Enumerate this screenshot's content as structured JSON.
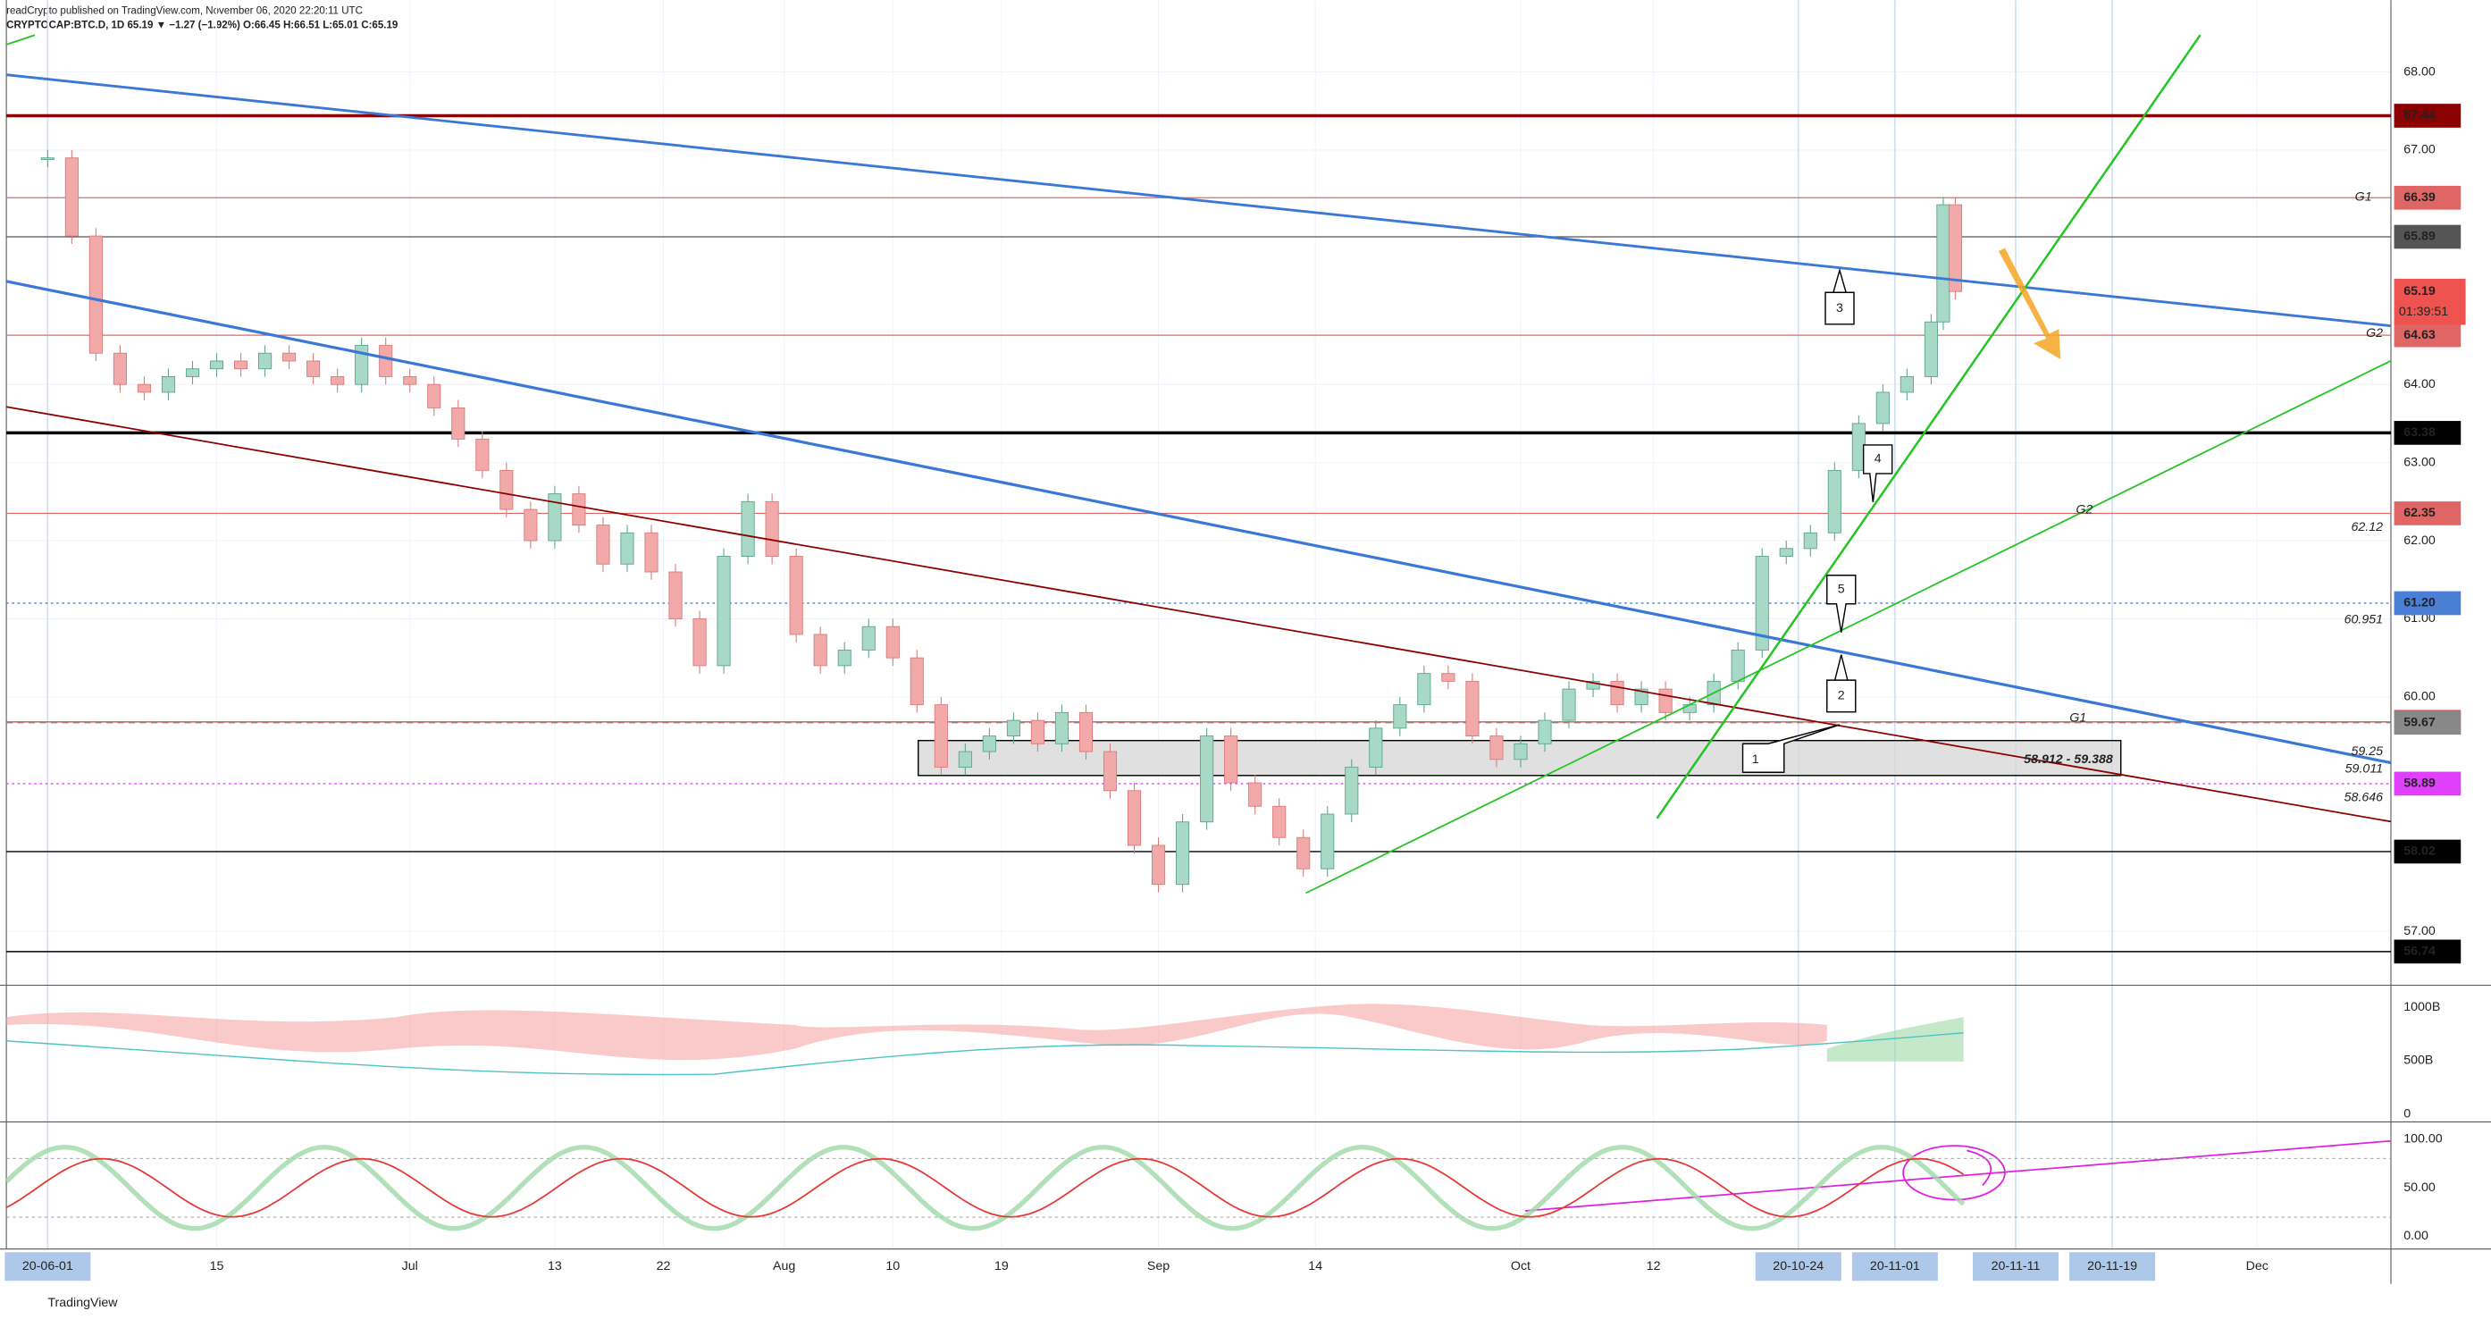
{
  "header": {
    "publisher": "readCrypto published on TradingView.com, November 06, 2020 22:20:11 UTC",
    "symbol": "CRYPTOCAP:BTC.D, 1D 65.19 ▼ −1.27 (−1.92%) O:66.45 H:66.51 L:65.01 C:65.19"
  },
  "chart_data": {
    "type": "candlestick",
    "x": [
      "20-06-01",
      "20-06-03",
      "20-06-05",
      "20-06-07",
      "20-06-09",
      "20-06-11",
      "20-06-13",
      "20-06-15",
      "20-06-17",
      "20-06-19",
      "20-06-21",
      "20-06-23",
      "20-06-25",
      "20-06-27",
      "20-06-29",
      "20-07-01",
      "20-07-03",
      "20-07-05",
      "20-07-07",
      "20-07-09",
      "20-07-11",
      "20-07-13",
      "20-07-15",
      "20-07-17",
      "20-07-19",
      "20-07-21",
      "20-07-23",
      "20-07-25",
      "20-07-27",
      "20-07-29",
      "20-07-31",
      "20-08-02",
      "20-08-04",
      "20-08-06",
      "20-08-08",
      "20-08-10",
      "20-08-12",
      "20-08-14",
      "20-08-16",
      "20-08-18",
      "20-08-20",
      "20-08-22",
      "20-08-24",
      "20-08-26",
      "20-08-28",
      "20-08-30",
      "20-09-01",
      "20-09-03",
      "20-09-05",
      "20-09-07",
      "20-09-09",
      "20-09-11",
      "20-09-13",
      "20-09-15",
      "20-09-17",
      "20-09-19",
      "20-09-21",
      "20-09-23",
      "20-09-25",
      "20-09-27",
      "20-09-29",
      "20-10-01",
      "20-10-03",
      "20-10-05",
      "20-10-07",
      "20-10-09",
      "20-10-11",
      "20-10-13",
      "20-10-15",
      "20-10-17",
      "20-10-19",
      "20-10-21",
      "20-10-23",
      "20-10-25",
      "20-10-27",
      "20-10-29",
      "20-10-31",
      "20-11-02",
      "20-11-04",
      "20-11-05",
      "20-11-06"
    ],
    "values": [
      66.9,
      65.9,
      64.4,
      64.0,
      63.9,
      64.1,
      64.2,
      64.3,
      64.2,
      64.4,
      64.3,
      64.1,
      64.0,
      64.5,
      64.1,
      64.0,
      63.7,
      63.3,
      62.9,
      62.4,
      62.0,
      62.6,
      62.2,
      61.7,
      62.1,
      61.6,
      61.0,
      60.4,
      61.8,
      62.5,
      61.8,
      60.8,
      60.4,
      60.6,
      60.9,
      60.5,
      59.9,
      59.1,
      59.3,
      59.5,
      59.7,
      59.4,
      59.8,
      59.3,
      58.8,
      58.1,
      57.6,
      58.4,
      59.5,
      58.9,
      58.6,
      58.2,
      57.8,
      58.5,
      59.1,
      59.6,
      59.9,
      60.3,
      60.2,
      59.5,
      59.2,
      59.4,
      59.7,
      60.1,
      60.2,
      59.9,
      60.1,
      59.8,
      59.9,
      60.2,
      60.6,
      61.8,
      61.9,
      62.1,
      62.9,
      63.5,
      63.9,
      64.1,
      64.8,
      66.3,
      65.19
    ],
    "up_color": "#a8d8c6",
    "down_color": "#f2a9a9",
    "countdown": "01:39:51",
    "ylim": [
      56.35,
      68.92
    ],
    "yticks": [
      {
        "value": 57,
        "label": "57.00"
      },
      {
        "value": 60,
        "label": "60.00"
      },
      {
        "value": 61,
        "label": "61.00"
      },
      {
        "value": 62,
        "label": "62.00"
      },
      {
        "value": 63,
        "label": "63.00"
      },
      {
        "value": 64,
        "label": "64.00"
      },
      {
        "value": 67,
        "label": "67.00"
      },
      {
        "value": 68,
        "label": "68.00"
      }
    ],
    "xticks": [
      {
        "value": "20-06-01",
        "label": "20-06-01",
        "highlight": true
      },
      {
        "value": "20-06-15",
        "label": "15"
      },
      {
        "value": "20-07-01",
        "label": "Jul"
      },
      {
        "value": "20-07-13",
        "label": "13"
      },
      {
        "value": "20-07-22",
        "label": "22"
      },
      {
        "value": "20-08-01",
        "label": "Aug"
      },
      {
        "value": "20-08-10",
        "label": "10"
      },
      {
        "value": "20-08-19",
        "label": "19"
      },
      {
        "value": "20-09-01",
        "label": "Sep"
      },
      {
        "value": "20-09-14",
        "label": "14"
      },
      {
        "value": "20-10-01",
        "label": "Oct"
      },
      {
        "value": "20-10-12",
        "label": "12"
      },
      {
        "value": "20-10-24",
        "label": "20-10-24",
        "highlight": true
      },
      {
        "value": "20-11-01",
        "label": "20-11-01",
        "highlight": true
      },
      {
        "value": "20-11-11",
        "label": "20-11-11",
        "highlight": true
      },
      {
        "value": "20-11-19",
        "label": "20-11-19",
        "highlight": true
      },
      {
        "value": "20-12-01",
        "label": "Dec"
      }
    ],
    "levels": [
      {
        "value": 67.44,
        "color": "#8b0000",
        "style": "solid",
        "width": 2
      },
      {
        "value": 66.39,
        "color": "#e06666",
        "style": "solid",
        "width": 0.7
      },
      {
        "value": 65.89,
        "color": "#555555",
        "style": "solid",
        "width": 0.7
      },
      {
        "value": 64.63,
        "color": "#e06666",
        "style": "solid",
        "width": 0.7
      },
      {
        "value": 63.38,
        "color": "#000000",
        "style": "solid",
        "width": 2
      },
      {
        "value": 62.35,
        "color": "#e06666",
        "style": "solid",
        "width": 0.7
      },
      {
        "value": 61.2,
        "label": "61.20",
        "color": "#4a7fd6",
        "style": "dotted",
        "width": 0.8
      },
      {
        "value": 59.68,
        "color": "#e53935",
        "style": "solid",
        "width": 0.7
      },
      {
        "value": 59.67,
        "color": "#888888",
        "style": "dashed",
        "width": 0.7
      },
      {
        "value": 58.89,
        "color": "#e040fb",
        "style": "dotted",
        "width": 0.8
      },
      {
        "value": 58.02,
        "color": "#000000",
        "style": "solid",
        "width": 0.8
      },
      {
        "value": 56.74,
        "color": "#000000",
        "style": "solid",
        "width": 0.8
      }
    ],
    "annotations": [
      "G1",
      "G2",
      "G2",
      "62.12",
      "60.951",
      "G1",
      "59.25",
      "59.011",
      "58.646",
      "58.912 - 59.388",
      "1",
      "2",
      "3",
      "4",
      "5"
    ],
    "volume_ticks": [
      {
        "value": 1000,
        "label": "1000B"
      },
      {
        "value": 500,
        "label": "500B"
      },
      0
    ],
    "oscillator_ticks": [
      {
        "value": 100,
        "label": "100.00"
      },
      {
        "value": 50,
        "label": "50.00"
      },
      {
        "value": 0,
        "label": "0.00"
      }
    ]
  },
  "footer": {
    "brand": "TradingView"
  }
}
